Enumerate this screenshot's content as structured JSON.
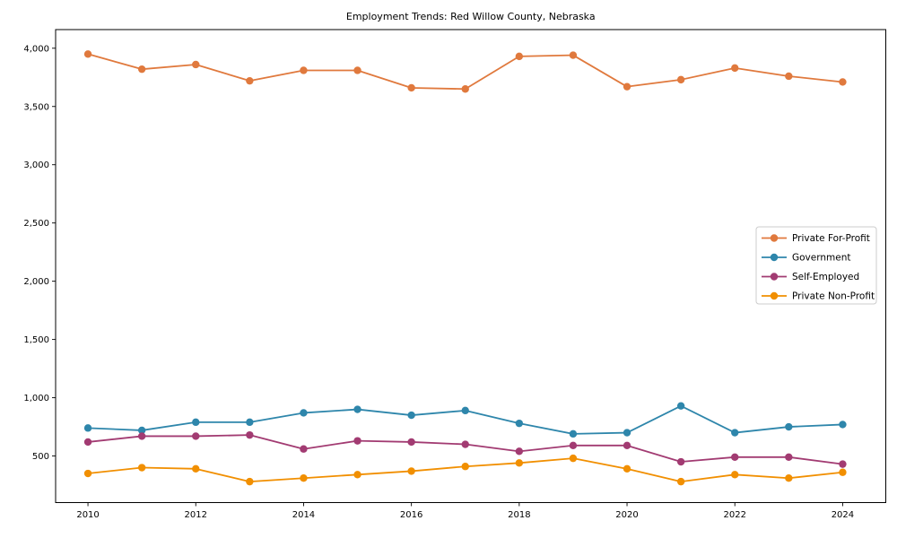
{
  "figure": {
    "background": "#ffffff",
    "frame_color": "#000000",
    "text_color": "#000000"
  },
  "chart_data": {
    "type": "line",
    "title": "Employment Trends: Red Willow County, Nebraska",
    "xlabel": "",
    "ylabel": "",
    "grid": false,
    "legend_position": "center right",
    "marker": "circle",
    "x": [
      2010,
      2011,
      2012,
      2013,
      2014,
      2015,
      2016,
      2017,
      2018,
      2019,
      2020,
      2021,
      2022,
      2023,
      2024
    ],
    "series": [
      {
        "name": "Private For-Profit",
        "color": "#e0793d",
        "values": [
          3950,
          3820,
          3860,
          3720,
          3810,
          3810,
          3660,
          3650,
          3930,
          3940,
          3670,
          3730,
          3830,
          3760,
          3710
        ]
      },
      {
        "name": "Government",
        "color": "#2e86ab",
        "values": [
          740,
          720,
          790,
          790,
          870,
          900,
          850,
          890,
          780,
          690,
          700,
          930,
          700,
          750,
          770
        ]
      },
      {
        "name": "Self-Employed",
        "color": "#a23b72",
        "values": [
          620,
          670,
          670,
          680,
          560,
          630,
          620,
          600,
          540,
          590,
          590,
          450,
          490,
          490,
          430
        ]
      },
      {
        "name": "Private Non-Profit",
        "color": "#f18f01",
        "values": [
          350,
          400,
          390,
          280,
          310,
          340,
          370,
          410,
          440,
          480,
          390,
          280,
          340,
          310,
          360
        ]
      }
    ],
    "xlim": [
      2009.4,
      2024.8
    ],
    "ylim": [
      100,
      4160
    ],
    "xticks": [
      2010,
      2012,
      2014,
      2016,
      2018,
      2020,
      2022,
      2024
    ],
    "xtick_labels": [
      "2010",
      "2012",
      "2014",
      "2016",
      "2018",
      "2020",
      "2022",
      "2024"
    ],
    "yticks": [
      500,
      1000,
      1500,
      2000,
      2500,
      3000,
      3500,
      4000
    ],
    "ytick_labels": [
      "500",
      "1,000",
      "1,500",
      "2,000",
      "2,500",
      "3,000",
      "3,500",
      "4,000"
    ]
  }
}
